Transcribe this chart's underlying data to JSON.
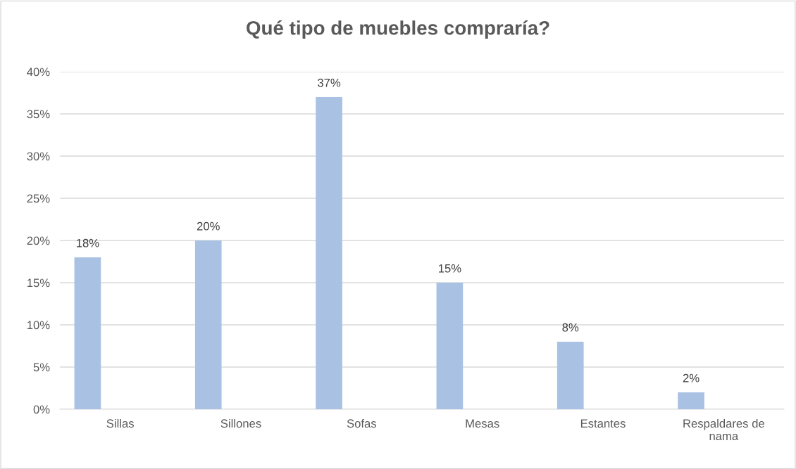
{
  "chart_data": {
    "type": "bar",
    "title": "Qué tipo de muebles compraría?",
    "categories": [
      "Sillas",
      "Sillones",
      "Sofas",
      "Mesas",
      "Estantes",
      "Respaldares de nama"
    ],
    "values": [
      18,
      20,
      37,
      15,
      8,
      2
    ],
    "value_labels": [
      "18%",
      "20%",
      "37%",
      "15%",
      "8%",
      "2%"
    ],
    "color": "#a9c2e4",
    "ylim": [
      0,
      40
    ],
    "yticks": [
      {
        "value": 0,
        "label": "0%"
      },
      {
        "value": 5,
        "label": "5%"
      },
      {
        "value": 10,
        "label": "10%"
      },
      {
        "value": 15,
        "label": "15%"
      },
      {
        "value": 20,
        "label": "20%"
      },
      {
        "value": 25,
        "label": "25%"
      },
      {
        "value": 30,
        "label": "30%"
      },
      {
        "value": 35,
        "label": "35%"
      },
      {
        "value": 40,
        "label": "40%"
      }
    ],
    "grid": "y",
    "legend": false
  }
}
